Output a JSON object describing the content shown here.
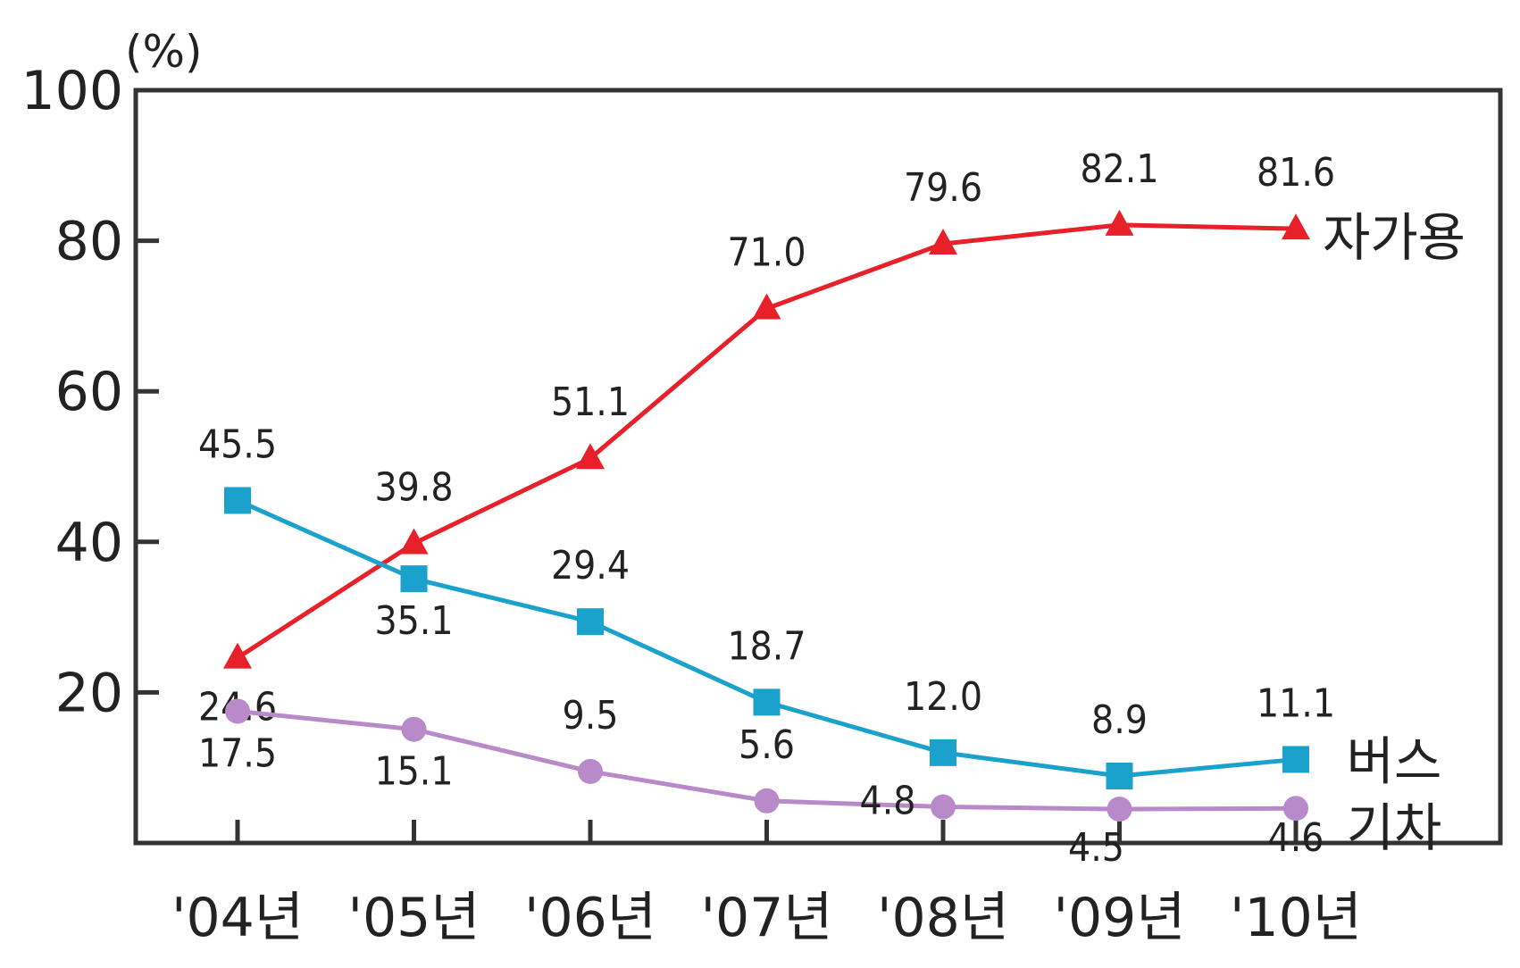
{
  "chart_data": {
    "type": "line",
    "title": "",
    "xlabel": "",
    "ylabel": "",
    "y_unit": "(%)",
    "ylim": [
      0,
      100
    ],
    "y_ticks": [
      20,
      40,
      60,
      80,
      100
    ],
    "grid": false,
    "categories": [
      "'04년",
      "'05년",
      "'06년",
      "'07년",
      "'08년",
      "'09년",
      "'10년"
    ],
    "series": [
      {
        "name": "자가용",
        "color": "#e8202a",
        "marker": "triangle",
        "values": [
          24.6,
          39.8,
          51.1,
          71.0,
          79.6,
          82.1,
          81.6
        ],
        "labels": [
          "24.6",
          "39.8",
          "51.1",
          "71.0",
          "79.6",
          "82.1",
          "81.6"
        ]
      },
      {
        "name": "버스",
        "color": "#1ba2cc",
        "marker": "square",
        "values": [
          45.5,
          35.1,
          29.4,
          18.7,
          12.0,
          8.9,
          11.1
        ],
        "labels": [
          "45.5",
          "35.1",
          "29.4",
          "18.7",
          "12.0",
          "8.9",
          "11.1"
        ]
      },
      {
        "name": "기차",
        "color": "#b98ac9",
        "marker": "circle",
        "values": [
          17.5,
          15.1,
          9.5,
          5.6,
          4.8,
          4.5,
          4.6
        ],
        "labels": [
          "17.5",
          "15.1",
          "9.5",
          "5.6",
          "4.8",
          "4.5",
          "4.6"
        ]
      }
    ],
    "legend": "inline-right"
  }
}
